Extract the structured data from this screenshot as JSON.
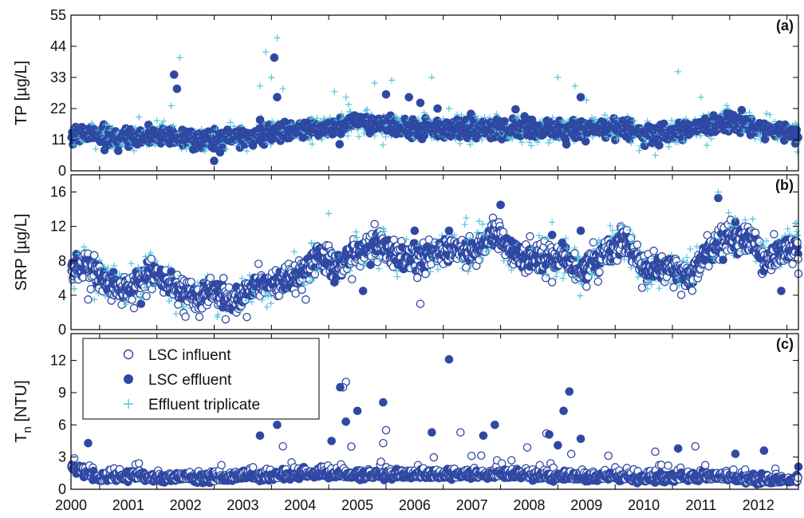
{
  "colors": {
    "influent": "#2f48a3",
    "effluent": "#2f48a3",
    "triplicate": "#57c4da",
    "axes": "#000000"
  },
  "legend": {
    "entries": [
      {
        "label": "LSC influent",
        "marker": "open-circle"
      },
      {
        "label": "LSC effluent",
        "marker": "filled-circle"
      },
      {
        "label": "Effluent triplicate",
        "marker": "plus"
      }
    ],
    "placement": "top-left of panel (c)"
  },
  "chart_data": [
    {
      "type": "scatter",
      "panel_tag": "(a)",
      "ylabel": "TP [µg/L]",
      "xlim": [
        2000,
        2012.7
      ],
      "ylim": [
        0,
        55
      ],
      "yticks": [
        0,
        11,
        22,
        33,
        44,
        55
      ],
      "xtick_labels": [],
      "series": [
        {
          "name": "LSC effluent",
          "marker": "filled-circle",
          "level": [
            [
              2000,
              13
            ],
            [
              2000.4,
              12.5
            ],
            [
              2000.8,
              11
            ],
            [
              2001.2,
              12
            ],
            [
              2001.6,
              13
            ],
            [
              2002,
              11
            ],
            [
              2002.5,
              11
            ],
            [
              2003,
              12
            ],
            [
              2003.5,
              14
            ],
            [
              2004,
              14
            ],
            [
              2004.5,
              15
            ],
            [
              2005,
              18
            ],
            [
              2005.5,
              16
            ],
            [
              2006,
              15
            ],
            [
              2006.5,
              15
            ],
            [
              2007,
              15
            ],
            [
              2007.5,
              15
            ],
            [
              2008,
              15
            ],
            [
              2008.5,
              14
            ],
            [
              2009,
              15
            ],
            [
              2009.5,
              15
            ],
            [
              2010,
              13
            ],
            [
              2010.5,
              13
            ],
            [
              2011,
              16
            ],
            [
              2011.5,
              18
            ],
            [
              2012,
              15
            ],
            [
              2012.7,
              13
            ]
          ],
          "outliers": [
            [
              2001.8,
              34
            ],
            [
              2001.85,
              29
            ],
            [
              2002.5,
              3.5
            ],
            [
              2003.3,
              18
            ],
            [
              2003.55,
              40
            ],
            [
              2003.6,
              26
            ],
            [
              2005.5,
              27
            ],
            [
              2006.1,
              24
            ],
            [
              2005.9,
              26
            ],
            [
              2008.9,
              26
            ],
            [
              2006.4,
              22
            ]
          ]
        },
        {
          "name": "Effluent triplicate",
          "marker": "plus",
          "outliers": [
            [
              2001.9,
              40
            ],
            [
              2001.75,
              23
            ],
            [
              2003.4,
              42
            ],
            [
              2003.6,
              47
            ],
            [
              2003.5,
              33
            ],
            [
              2003.3,
              30
            ],
            [
              2003.7,
              29
            ],
            [
              2004.6,
              28
            ],
            [
              2004.8,
              26
            ],
            [
              2005.3,
              31
            ],
            [
              2005.6,
              32
            ],
            [
              2006.3,
              33
            ],
            [
              2006.6,
              22
            ],
            [
              2008.5,
              33
            ],
            [
              2008.8,
              30
            ],
            [
              2009.0,
              25
            ],
            [
              2010.2,
              5.5
            ],
            [
              2010.6,
              35
            ],
            [
              2011.0,
              26
            ],
            [
              2011.1,
              9
            ]
          ]
        }
      ]
    },
    {
      "type": "scatter",
      "panel_tag": "(b)",
      "ylabel": "SRP [µg/L]",
      "xlim": [
        2000,
        2012.7
      ],
      "ylim": [
        0,
        18
      ],
      "yticks": [
        0,
        4,
        8,
        12,
        16
      ],
      "xtick_labels": [],
      "series": [
        {
          "name": "LSC influent",
          "marker": "open-circle",
          "level": [
            [
              2000,
              6.5
            ],
            [
              2000.3,
              7.5
            ],
            [
              2000.6,
              5.5
            ],
            [
              2001,
              4.5
            ],
            [
              2001.4,
              6.5
            ],
            [
              2001.8,
              5
            ],
            [
              2002.2,
              3.5
            ],
            [
              2002.5,
              4.5
            ],
            [
              2002.8,
              3
            ],
            [
              2003.2,
              5
            ],
            [
              2003.6,
              5.5
            ],
            [
              2004,
              6.5
            ],
            [
              2004.3,
              8.5
            ],
            [
              2004.7,
              7.5
            ],
            [
              2005,
              9
            ],
            [
              2005.4,
              10
            ],
            [
              2005.8,
              8
            ],
            [
              2006.2,
              8.5
            ],
            [
              2006.6,
              9.5
            ],
            [
              2007,
              9
            ],
            [
              2007.4,
              11
            ],
            [
              2007.8,
              8.5
            ],
            [
              2008.2,
              8.5
            ],
            [
              2008.6,
              8.5
            ],
            [
              2008.9,
              6.5
            ],
            [
              2009.3,
              9
            ],
            [
              2009.7,
              10.5
            ],
            [
              2010,
              7
            ],
            [
              2010.4,
              7.5
            ],
            [
              2010.8,
              6
            ],
            [
              2011.1,
              9
            ],
            [
              2011.5,
              10.5
            ],
            [
              2011.9,
              10.5
            ],
            [
              2012.1,
              8
            ],
            [
              2012.4,
              9
            ],
            [
              2012.7,
              10
            ]
          ],
          "outliers": [
            [
              2000.3,
              3.5
            ],
            [
              2001.1,
              2.5
            ],
            [
              2002.0,
              1.5
            ],
            [
              2002.7,
              1.2
            ],
            [
              2004.1,
              3.5
            ],
            [
              2006.1,
              3.0
            ],
            [
              2007.5,
              14.5
            ],
            [
              2009.0,
              5
            ],
            [
              2012.7,
              6.5
            ]
          ]
        },
        {
          "name": "LSC effluent",
          "marker": "filled-circle",
          "outliers": [
            [
              2004.3,
              8.5
            ],
            [
              2004.6,
              5.5
            ],
            [
              2005.1,
              4.5
            ],
            [
              2006.0,
              11.5
            ],
            [
              2006.6,
              11.5
            ],
            [
              2007.5,
              14.5
            ],
            [
              2008.4,
              11
            ],
            [
              2008.9,
              11.5
            ],
            [
              2011.3,
              15.3
            ],
            [
              2011.6,
              12.5
            ],
            [
              2012.4,
              4.5
            ]
          ]
        },
        {
          "name": "Effluent triplicate",
          "marker": "plus",
          "outliers": [
            [
              2001.3,
              8.5
            ],
            [
              2001.2,
              7
            ],
            [
              2004.5,
              13.5
            ],
            [
              2004.2,
              10
            ],
            [
              2006.9,
              13
            ],
            [
              2007.2,
              11
            ],
            [
              2008.4,
              12.5
            ],
            [
              2008.8,
              6
            ],
            [
              2009.1,
              6.5
            ],
            [
              2011.3,
              16
            ],
            [
              2011.6,
              13
            ]
          ]
        }
      ]
    },
    {
      "type": "scatter",
      "panel_tag": "(c)",
      "ylabel": "T",
      "ylabel_sub": "n",
      "ylabel_rest": " [NTU]",
      "xlim": [
        2000,
        2012.7
      ],
      "ylim": [
        0,
        14.5
      ],
      "yticks": [
        0,
        3,
        6,
        9,
        12
      ],
      "xtick_labels": [
        "2000",
        "2001",
        "2002",
        "2003",
        "2004",
        "2005",
        "2006",
        "2007",
        "2008",
        "2009",
        "2010",
        "2011",
        "2012"
      ],
      "series": [
        {
          "name": "LSC influent",
          "marker": "open-circle",
          "level": [
            [
              2000,
              2.2
            ],
            [
              2000.5,
              1
            ],
            [
              2001,
              1.3
            ],
            [
              2001.5,
              1
            ],
            [
              2002,
              1.2
            ],
            [
              2002.5,
              1
            ],
            [
              2003,
              1.3
            ],
            [
              2003.5,
              1.2
            ],
            [
              2004,
              1.5
            ],
            [
              2004.5,
              1.5
            ],
            [
              2005,
              1.3
            ],
            [
              2005.5,
              1.4
            ],
            [
              2006,
              1.4
            ],
            [
              2006.5,
              1.3
            ],
            [
              2007,
              1.4
            ],
            [
              2007.5,
              1.4
            ],
            [
              2008,
              1.3
            ],
            [
              2008.5,
              1.2
            ],
            [
              2009,
              1.1
            ],
            [
              2009.5,
              1.3
            ],
            [
              2010,
              1.0
            ],
            [
              2010.5,
              1.1
            ],
            [
              2011,
              1.2
            ],
            [
              2011.5,
              1.1
            ],
            [
              2012,
              0.8
            ],
            [
              2012.7,
              0.9
            ]
          ],
          "outliers": [
            [
              2004.8,
              10
            ],
            [
              2004.75,
              9.5
            ],
            [
              2005.5,
              5.5
            ],
            [
              2005.45,
              4.3
            ],
            [
              2006.8,
              5.3
            ],
            [
              2008.3,
              5.2
            ],
            [
              2003.7,
              4
            ],
            [
              2010.2,
              3.5
            ],
            [
              2010.9,
              4
            ]
          ]
        },
        {
          "name": "LSC effluent",
          "marker": "filled-circle",
          "outliers": [
            [
              2000.3,
              4.3
            ],
            [
              2003.3,
              5
            ],
            [
              2003.6,
              6
            ],
            [
              2004.55,
              4.5
            ],
            [
              2004.7,
              9.5
            ],
            [
              2004.8,
              6.3
            ],
            [
              2005.0,
              7.3
            ],
            [
              2005.45,
              8.1
            ],
            [
              2006.6,
              12.1
            ],
            [
              2006.3,
              5.3
            ],
            [
              2007.2,
              5
            ],
            [
              2007.4,
              6
            ],
            [
              2008.35,
              5.1
            ],
            [
              2008.5,
              4.1
            ],
            [
              2008.7,
              9.1
            ],
            [
              2008.6,
              7.3
            ],
            [
              2008.9,
              4.7
            ],
            [
              2010.6,
              3.8
            ],
            [
              2011.6,
              3.3
            ],
            [
              2012.1,
              3.6
            ],
            [
              2012.7,
              2.1
            ]
          ]
        },
        {
          "name": "Effluent triplicate",
          "marker": "plus",
          "outliers": []
        }
      ]
    }
  ]
}
